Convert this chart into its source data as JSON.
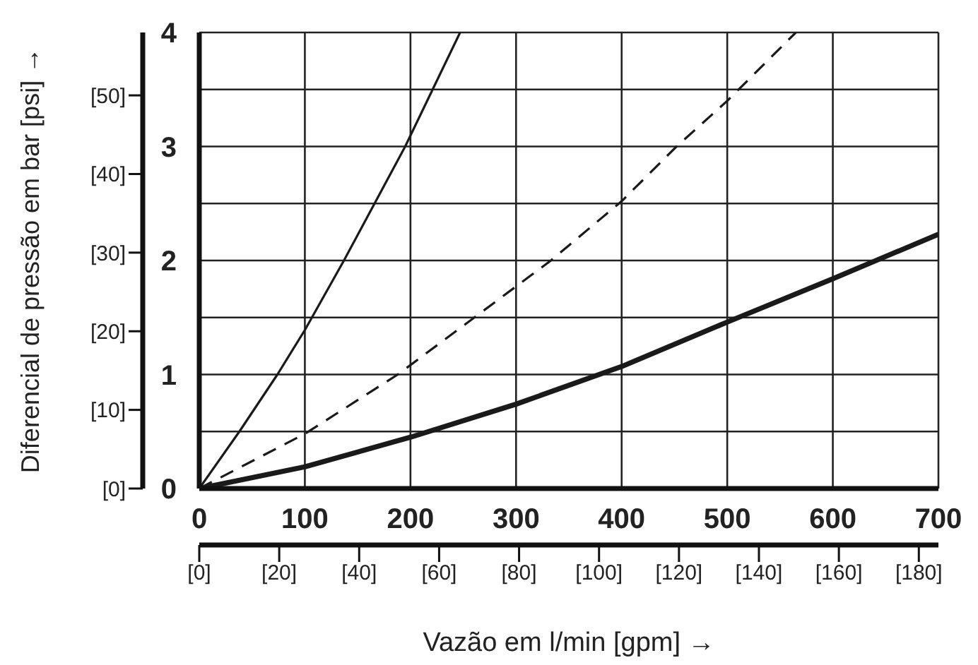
{
  "chart_data": {
    "type": "line",
    "xlabel": "Vazão em l/min [gpm] →",
    "y2label": "Diferencial de pressão em bar [psi] →",
    "xlim": [
      0,
      700
    ],
    "xticks": [
      0,
      100,
      200,
      300,
      400,
      500,
      600,
      700
    ],
    "ylim": [
      0,
      4
    ],
    "yticks": [
      0,
      {
        "value": 0.5,
        "label": null
      },
      1,
      {
        "value": 1.5,
        "label": null
      },
      2,
      {
        "value": 2.5,
        "label": null
      },
      3,
      {
        "value": 3.5,
        "label": null
      },
      4
    ],
    "x2lim": [
      0,
      184.9
    ],
    "x2ticks": [
      {
        "value": 0,
        "label": "[0]"
      },
      {
        "value": 20,
        "label": "[20]"
      },
      {
        "value": 40,
        "label": "[40]"
      },
      {
        "value": 60,
        "label": "[60]"
      },
      {
        "value": 80,
        "label": "[80]"
      },
      {
        "value": 100,
        "label": "[100]"
      },
      {
        "value": 120,
        "label": "[120]"
      },
      {
        "value": 140,
        "label": "[140]"
      },
      {
        "value": 160,
        "label": "[160]"
      },
      {
        "value": 180,
        "label": "[180]"
      }
    ],
    "y2lim": [
      0,
      58.0
    ],
    "y2ticks": [
      {
        "value": 0,
        "label": "[0]"
      },
      {
        "value": 10,
        "label": "[10]"
      },
      {
        "value": 20,
        "label": "[20]"
      },
      {
        "value": 30,
        "label": "[30]"
      },
      {
        "value": 40,
        "label": "[40]"
      },
      {
        "value": 50,
        "label": "[50]"
      }
    ],
    "grid": true,
    "marker": "none",
    "series": [
      {
        "color": "#1a1a1a",
        "line_style": "solid",
        "x": [
          0,
          38,
          74,
          100,
          137,
          195,
          247
        ],
        "values": [
          0,
          0.5,
          1,
          1.39,
          2,
          3,
          4
        ]
      },
      {
        "color": "#1a1a1a",
        "line_style": "dashed",
        "x": [
          0,
          100,
          188,
          333,
          400,
          452,
          500,
          565
        ],
        "values": [
          0,
          0.48,
          1,
          2,
          2.52,
          3,
          3.4,
          4
        ]
      },
      {
        "color": "#1a1a1a",
        "line_style": "solid",
        "x": [
          0,
          100,
          200,
          300,
          400,
          500,
          600,
          700
        ],
        "values": [
          0,
          0.19,
          0.45,
          0.74,
          1.07,
          1.46,
          1.84,
          2.23
        ]
      }
    ]
  }
}
